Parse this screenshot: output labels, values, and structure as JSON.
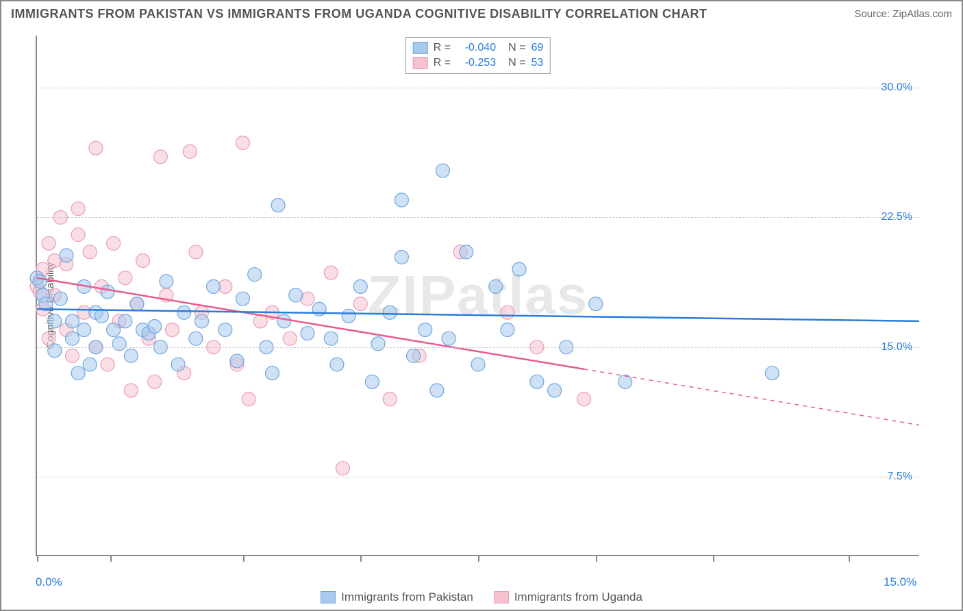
{
  "title": "IMMIGRANTS FROM PAKISTAN VS IMMIGRANTS FROM UGANDA COGNITIVE DISABILITY CORRELATION CHART",
  "source": "Source: ZipAtlas.com",
  "watermark": "ZIPatlas",
  "ylabel": "Cognitive Disability",
  "chart": {
    "type": "scatter-correlation",
    "xlim": [
      0,
      15
    ],
    "ylim": [
      3,
      33
    ],
    "ytick_values": [
      7.5,
      15.0,
      22.5,
      30.0
    ],
    "ytick_labels": [
      "7.5%",
      "15.0%",
      "22.5%",
      "30.0%"
    ],
    "xtick_values": [
      0,
      1.25,
      3.5,
      5.5,
      7.5,
      9.5,
      11.5,
      13.8
    ],
    "xaxis_left_label": "0.0%",
    "xaxis_right_label": "15.0%",
    "ytick_color": "#2a7bdb",
    "xaxis_label_color": "#2a7bdb",
    "grid_color": "#cccccc",
    "axis_color": "#888888",
    "background_color": "#ffffff",
    "marker_radius": 10,
    "marker_opacity": 0.55,
    "line_width": 2.5,
    "series": [
      {
        "name": "Immigrants from Pakistan",
        "color_fill": "#a8c8ec",
        "color_stroke": "#6ea6e0",
        "line_color": "#2a7bdb",
        "R": "-0.040",
        "N": "69",
        "trend": {
          "x1": 0,
          "y1": 17.2,
          "x2": 15,
          "y2": 16.5,
          "solid_until_x": 15
        },
        "points": [
          [
            0.0,
            19.0
          ],
          [
            0.1,
            18.0
          ],
          [
            0.3,
            16.5
          ],
          [
            0.3,
            14.8
          ],
          [
            0.4,
            17.8
          ],
          [
            0.5,
            20.3
          ],
          [
            0.6,
            15.5
          ],
          [
            0.6,
            16.5
          ],
          [
            0.7,
            13.5
          ],
          [
            0.8,
            18.5
          ],
          [
            0.8,
            16.0
          ],
          [
            0.9,
            14.0
          ],
          [
            1.0,
            17.0
          ],
          [
            1.0,
            15.0
          ],
          [
            1.1,
            16.8
          ],
          [
            1.2,
            18.2
          ],
          [
            1.3,
            16.0
          ],
          [
            1.4,
            15.2
          ],
          [
            1.5,
            16.5
          ],
          [
            1.6,
            14.5
          ],
          [
            1.7,
            17.5
          ],
          [
            1.8,
            16.0
          ],
          [
            1.9,
            15.8
          ],
          [
            2.0,
            16.2
          ],
          [
            2.1,
            15.0
          ],
          [
            2.2,
            18.8
          ],
          [
            2.4,
            14.0
          ],
          [
            2.5,
            17.0
          ],
          [
            2.7,
            15.5
          ],
          [
            2.8,
            16.5
          ],
          [
            3.0,
            18.5
          ],
          [
            3.2,
            16.0
          ],
          [
            3.4,
            14.2
          ],
          [
            3.5,
            17.8
          ],
          [
            3.7,
            19.2
          ],
          [
            3.9,
            15.0
          ],
          [
            4.0,
            13.5
          ],
          [
            4.1,
            23.2
          ],
          [
            4.2,
            16.5
          ],
          [
            4.4,
            18.0
          ],
          [
            4.6,
            15.8
          ],
          [
            4.8,
            17.2
          ],
          [
            5.0,
            15.5
          ],
          [
            5.1,
            14.0
          ],
          [
            5.3,
            16.8
          ],
          [
            5.5,
            18.5
          ],
          [
            5.7,
            13.0
          ],
          [
            5.8,
            15.2
          ],
          [
            6.0,
            17.0
          ],
          [
            6.2,
            23.5
          ],
          [
            6.2,
            20.2
          ],
          [
            6.4,
            14.5
          ],
          [
            6.6,
            16.0
          ],
          [
            6.8,
            12.5
          ],
          [
            6.9,
            25.2
          ],
          [
            7.0,
            15.5
          ],
          [
            7.3,
            20.5
          ],
          [
            7.5,
            14.0
          ],
          [
            7.8,
            18.5
          ],
          [
            8.0,
            16.0
          ],
          [
            8.2,
            19.5
          ],
          [
            8.5,
            13.0
          ],
          [
            8.8,
            12.5
          ],
          [
            9.0,
            15.0
          ],
          [
            9.5,
            17.5
          ],
          [
            10.0,
            13.0
          ],
          [
            12.5,
            13.5
          ],
          [
            0.05,
            18.8
          ],
          [
            0.15,
            17.5
          ]
        ]
      },
      {
        "name": "Immigrants from Uganda",
        "color_fill": "#f5c2d0",
        "color_stroke": "#eb9db2",
        "line_color": "#e65c8f",
        "R": "-0.253",
        "N": "53",
        "trend": {
          "x1": 0,
          "y1": 19.0,
          "x2": 15,
          "y2": 10.5,
          "solid_until_x": 9.3
        },
        "points": [
          [
            0.0,
            18.5
          ],
          [
            0.1,
            19.5
          ],
          [
            0.1,
            17.2
          ],
          [
            0.2,
            21.0
          ],
          [
            0.2,
            15.5
          ],
          [
            0.3,
            20.0
          ],
          [
            0.3,
            18.0
          ],
          [
            0.4,
            22.5
          ],
          [
            0.5,
            16.0
          ],
          [
            0.5,
            19.8
          ],
          [
            0.6,
            14.5
          ],
          [
            0.7,
            21.5
          ],
          [
            0.7,
            23.0
          ],
          [
            0.8,
            17.0
          ],
          [
            0.9,
            20.5
          ],
          [
            1.0,
            15.0
          ],
          [
            1.0,
            26.5
          ],
          [
            1.1,
            18.5
          ],
          [
            1.2,
            14.0
          ],
          [
            1.3,
            21.0
          ],
          [
            1.4,
            16.5
          ],
          [
            1.5,
            19.0
          ],
          [
            1.6,
            12.5
          ],
          [
            1.7,
            17.5
          ],
          [
            1.8,
            20.0
          ],
          [
            1.9,
            15.5
          ],
          [
            2.0,
            13.0
          ],
          [
            2.1,
            26.0
          ],
          [
            2.2,
            18.0
          ],
          [
            2.3,
            16.0
          ],
          [
            2.5,
            13.5
          ],
          [
            2.6,
            26.3
          ],
          [
            2.7,
            20.5
          ],
          [
            2.8,
            17.0
          ],
          [
            3.0,
            15.0
          ],
          [
            3.2,
            18.5
          ],
          [
            3.4,
            14.0
          ],
          [
            3.5,
            26.8
          ],
          [
            3.6,
            12.0
          ],
          [
            3.8,
            16.5
          ],
          [
            4.0,
            17.0
          ],
          [
            4.3,
            15.5
          ],
          [
            4.6,
            17.8
          ],
          [
            5.0,
            19.3
          ],
          [
            5.2,
            8.0
          ],
          [
            5.5,
            17.5
          ],
          [
            6.0,
            12.0
          ],
          [
            6.5,
            14.5
          ],
          [
            7.2,
            20.5
          ],
          [
            8.0,
            17.0
          ],
          [
            8.5,
            15.0
          ],
          [
            9.3,
            12.0
          ],
          [
            0.05,
            18.2
          ]
        ]
      }
    ],
    "bottom_legend": [
      {
        "label": "Immigrants from Pakistan",
        "fill": "#a8c8ec",
        "stroke": "#6ea6e0"
      },
      {
        "label": "Immigrants from Uganda",
        "fill": "#f5c2d0",
        "stroke": "#eb9db2"
      }
    ]
  }
}
